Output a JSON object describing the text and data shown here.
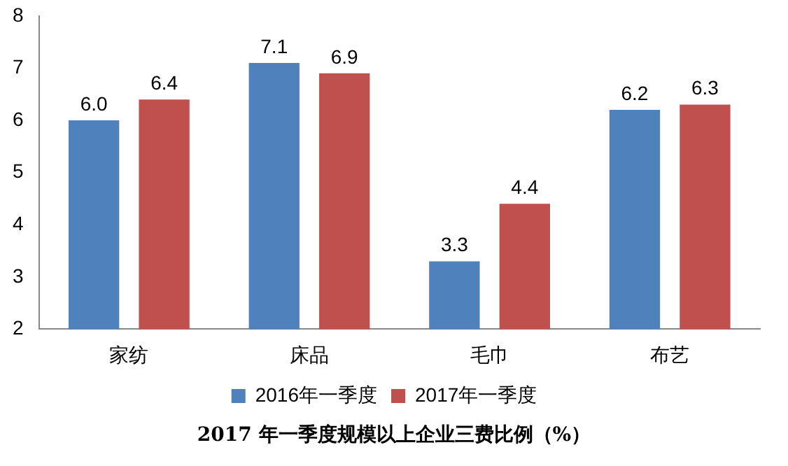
{
  "chart_data": {
    "type": "bar",
    "title": "2017 年一季度规模以上企业三费比例（%）",
    "categories": [
      "家纺",
      "床品",
      "毛巾",
      "布艺"
    ],
    "series": [
      {
        "name": "2016年一季度",
        "color": "#4f81bd",
        "values": [
          6.0,
          7.1,
          3.3,
          6.2
        ],
        "value_labels": [
          "6.0",
          "7.1",
          "3.3",
          "6.2"
        ]
      },
      {
        "name": "2017年一季度",
        "color": "#c0504d",
        "values": [
          6.4,
          6.9,
          4.4,
          6.3
        ],
        "value_labels": [
          "6.4",
          "6.9",
          "4.4",
          "6.3"
        ]
      }
    ],
    "ylim": [
      2,
      8
    ],
    "yticks": [
      2,
      3,
      4,
      5,
      6,
      7,
      8
    ],
    "grid": false,
    "legend": "bottom"
  }
}
